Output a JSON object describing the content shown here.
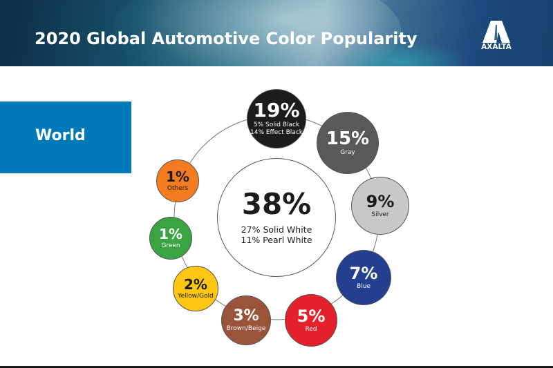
{
  "header": {
    "title": "2020 Global Automotive Color Popularity",
    "logo_text": "AXALTA"
  },
  "region": {
    "label": "World"
  },
  "chart_data": {
    "type": "pie",
    "title": "2020 Global Automotive Color Popularity",
    "region": "World",
    "center": {
      "name": "White",
      "value": 38,
      "label": "38%",
      "breakdown": [
        "27% Solid White",
        "11% Pearl White"
      ]
    },
    "items": [
      {
        "name": "Black",
        "value": 19,
        "label": "19%",
        "sub": [
          "5% Solid Black",
          "14% Effect Black"
        ],
        "color": "#1e1b1c"
      },
      {
        "name": "Gray",
        "value": 15,
        "label": "15%",
        "sub": [
          "Gray"
        ],
        "color": "#58595b"
      },
      {
        "name": "Silver",
        "value": 9,
        "label": "9%",
        "sub": [
          "Silver"
        ],
        "color": "#c8c8c9"
      },
      {
        "name": "Blue",
        "value": 7,
        "label": "7%",
        "sub": [
          "Blue"
        ],
        "color": "#233f8f"
      },
      {
        "name": "Red",
        "value": 5,
        "label": "5%",
        "sub": [
          "Red"
        ],
        "color": "#e4202a"
      },
      {
        "name": "Brown/Beige",
        "value": 3,
        "label": "3%",
        "sub": [
          "Brown/Beige"
        ],
        "color": "#99543a"
      },
      {
        "name": "Yellow/Gold",
        "value": 2,
        "label": "2%",
        "sub": [
          "Yellow/Gold"
        ],
        "color": "#fcc612"
      },
      {
        "name": "Green",
        "value": 1,
        "label": "1%",
        "sub": [
          "Green"
        ],
        "color": "#3aa443"
      },
      {
        "name": "Others",
        "value": 1,
        "label": "1%",
        "sub": [
          "Others"
        ],
        "color": "#f37c20"
      }
    ]
  }
}
